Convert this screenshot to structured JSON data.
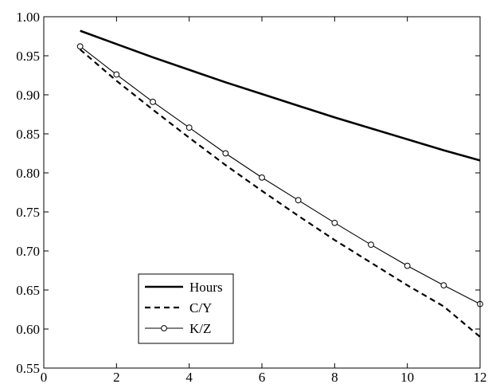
{
  "chart_data": {
    "type": "line",
    "title": "",
    "xlabel": "",
    "ylabel": "",
    "xlim": [
      0,
      12
    ],
    "ylim": [
      0.55,
      1.0
    ],
    "xticks": [
      "0",
      "2",
      "4",
      "6",
      "8",
      "10",
      "12"
    ],
    "yticks": [
      "0.55",
      "0.60",
      "0.65",
      "0.70",
      "0.75",
      "0.80",
      "0.85",
      "0.90",
      "0.95",
      "1.00"
    ],
    "grid": false,
    "legend_position": "bottom-left",
    "x": [
      1,
      2,
      3,
      4,
      5,
      6,
      7,
      8,
      9,
      10,
      11,
      12
    ],
    "series": [
      {
        "name": "Hours",
        "style": "solid-thick",
        "color": "#000000",
        "values": [
          0.982,
          0.965,
          0.948,
          0.932,
          0.916,
          0.901,
          0.886,
          0.871,
          0.857,
          0.843,
          0.829,
          0.816
        ]
      },
      {
        "name": "C/Y",
        "style": "dashed",
        "color": "#000000",
        "values": [
          0.958,
          0.918,
          0.881,
          0.845,
          0.81,
          0.777,
          0.745,
          0.714,
          0.685,
          0.656,
          0.629,
          0.59
        ]
      },
      {
        "name": "K/Z",
        "style": "solid-thin-circle-markers",
        "color": "#000000",
        "values": [
          0.962,
          0.926,
          0.891,
          0.858,
          0.825,
          0.794,
          0.765,
          0.736,
          0.708,
          0.681,
          0.656,
          0.632
        ]
      }
    ]
  }
}
